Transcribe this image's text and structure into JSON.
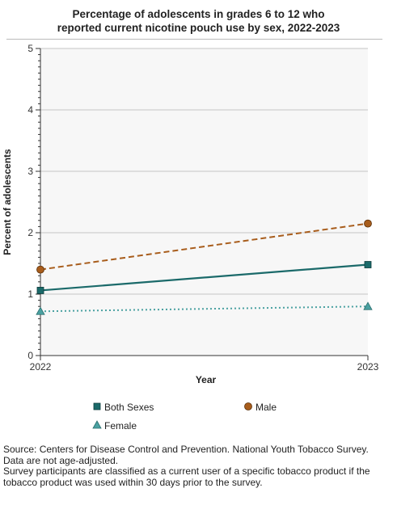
{
  "chart_data": {
    "type": "line",
    "title_line1": "Percentage of adolescents in grades 6 to 12 who",
    "title_line2": "reported current nicotine pouch use by sex, 2022-2023",
    "xlabel": "Year",
    "ylabel": "Percent of adolescents",
    "x": [
      "2022",
      "2023"
    ],
    "ylim": [
      0,
      5
    ],
    "yticks": [
      "0",
      "1",
      "2",
      "3",
      "4",
      "5"
    ],
    "grid": true,
    "legend_position": "bottom",
    "series": [
      {
        "name": "Both Sexes",
        "values": [
          1.06,
          1.48
        ],
        "color": "#1b6a6a",
        "style": "solid",
        "marker": "square"
      },
      {
        "name": "Male",
        "values": [
          1.4,
          2.15
        ],
        "color": "#a85d1c",
        "style": "dashed",
        "marker": "circle"
      },
      {
        "name": "Female",
        "values": [
          0.72,
          0.8
        ],
        "color": "#4aa1a1",
        "style": "dotted",
        "marker": "triangle"
      }
    ]
  },
  "footer": {
    "source": "Source: Centers for Disease Control and Prevention. National Youth Tobacco Survey.",
    "note1": "Data are not age-adjusted.",
    "note2": "Survey participants are classified as a current user of a specific tobacco product if the tobacco product was used within 30 days prior to the survey."
  }
}
